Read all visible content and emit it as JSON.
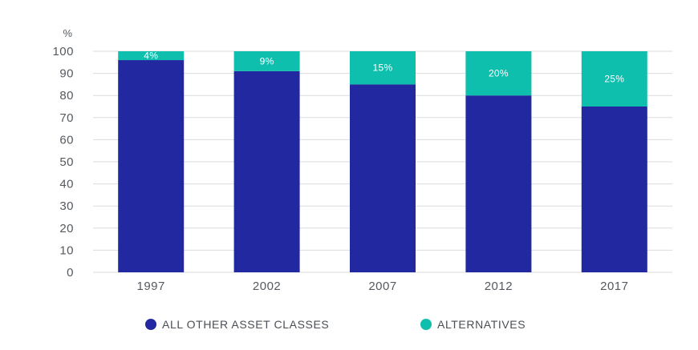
{
  "chart_data": {
    "type": "bar",
    "stacked": true,
    "title": "",
    "xlabel": "",
    "ylabel": "%",
    "ylim": [
      0,
      100
    ],
    "yticks": [
      0,
      10,
      20,
      30,
      40,
      50,
      60,
      70,
      80,
      90,
      100
    ],
    "categories": [
      "1997",
      "2002",
      "2007",
      "2012",
      "2017"
    ],
    "series": [
      {
        "name": "ALL OTHER ASSET CLASSES",
        "values": [
          96,
          91,
          85,
          80,
          75
        ],
        "color": "#2128a0"
      },
      {
        "name": "ALTERNATIVES",
        "values": [
          4,
          9,
          15,
          20,
          25
        ],
        "color": "#0ebfad"
      }
    ],
    "data_labels": [
      "4%",
      "9%",
      "15%",
      "20%",
      "25%"
    ],
    "grid": true,
    "legend": "bottom"
  }
}
